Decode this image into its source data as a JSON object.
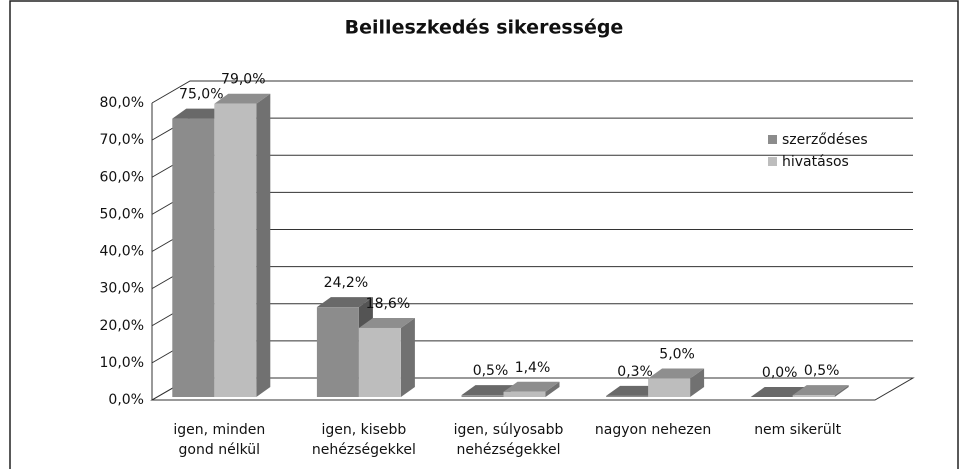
{
  "chart_data": {
    "type": "bar3d",
    "title": "Beilleszkedés sikeressége",
    "categories": [
      "igen, minden gond nélkül",
      "igen, kisebb nehézségekkel",
      "igen, súlyosabb nehézségekkel",
      "nagyon nehezen",
      "nem sikerült"
    ],
    "series": [
      {
        "name": "szerződéses",
        "color": "#8c8c8c",
        "values": [
          75.0,
          24.2,
          0.5,
          0.3,
          0.0
        ],
        "value_labels": [
          "75,0%",
          "24,2%",
          "0,5%",
          "0,3%",
          "0,0%"
        ]
      },
      {
        "name": "hivatásos",
        "color": "#bdbdbd",
        "values": [
          79.0,
          18.6,
          1.4,
          5.0,
          0.5
        ],
        "value_labels": [
          "79,0%",
          "18,6%",
          "1,4%",
          "5,0%",
          "0,5%"
        ]
      }
    ],
    "ylim": [
      0,
      80
    ],
    "yticks": [
      {
        "value": 0,
        "label": "0,0%"
      },
      {
        "value": 10,
        "label": "10,0%"
      },
      {
        "value": 20,
        "label": "20,0%"
      },
      {
        "value": 30,
        "label": "30,0%"
      },
      {
        "value": 40,
        "label": "40,0%"
      },
      {
        "value": 50,
        "label": "50,0%"
      },
      {
        "value": 60,
        "label": "60,0%"
      },
      {
        "value": 70,
        "label": "70,0%"
      },
      {
        "value": 80,
        "label": "80,0%"
      }
    ],
    "grid": true,
    "legend": "right"
  }
}
